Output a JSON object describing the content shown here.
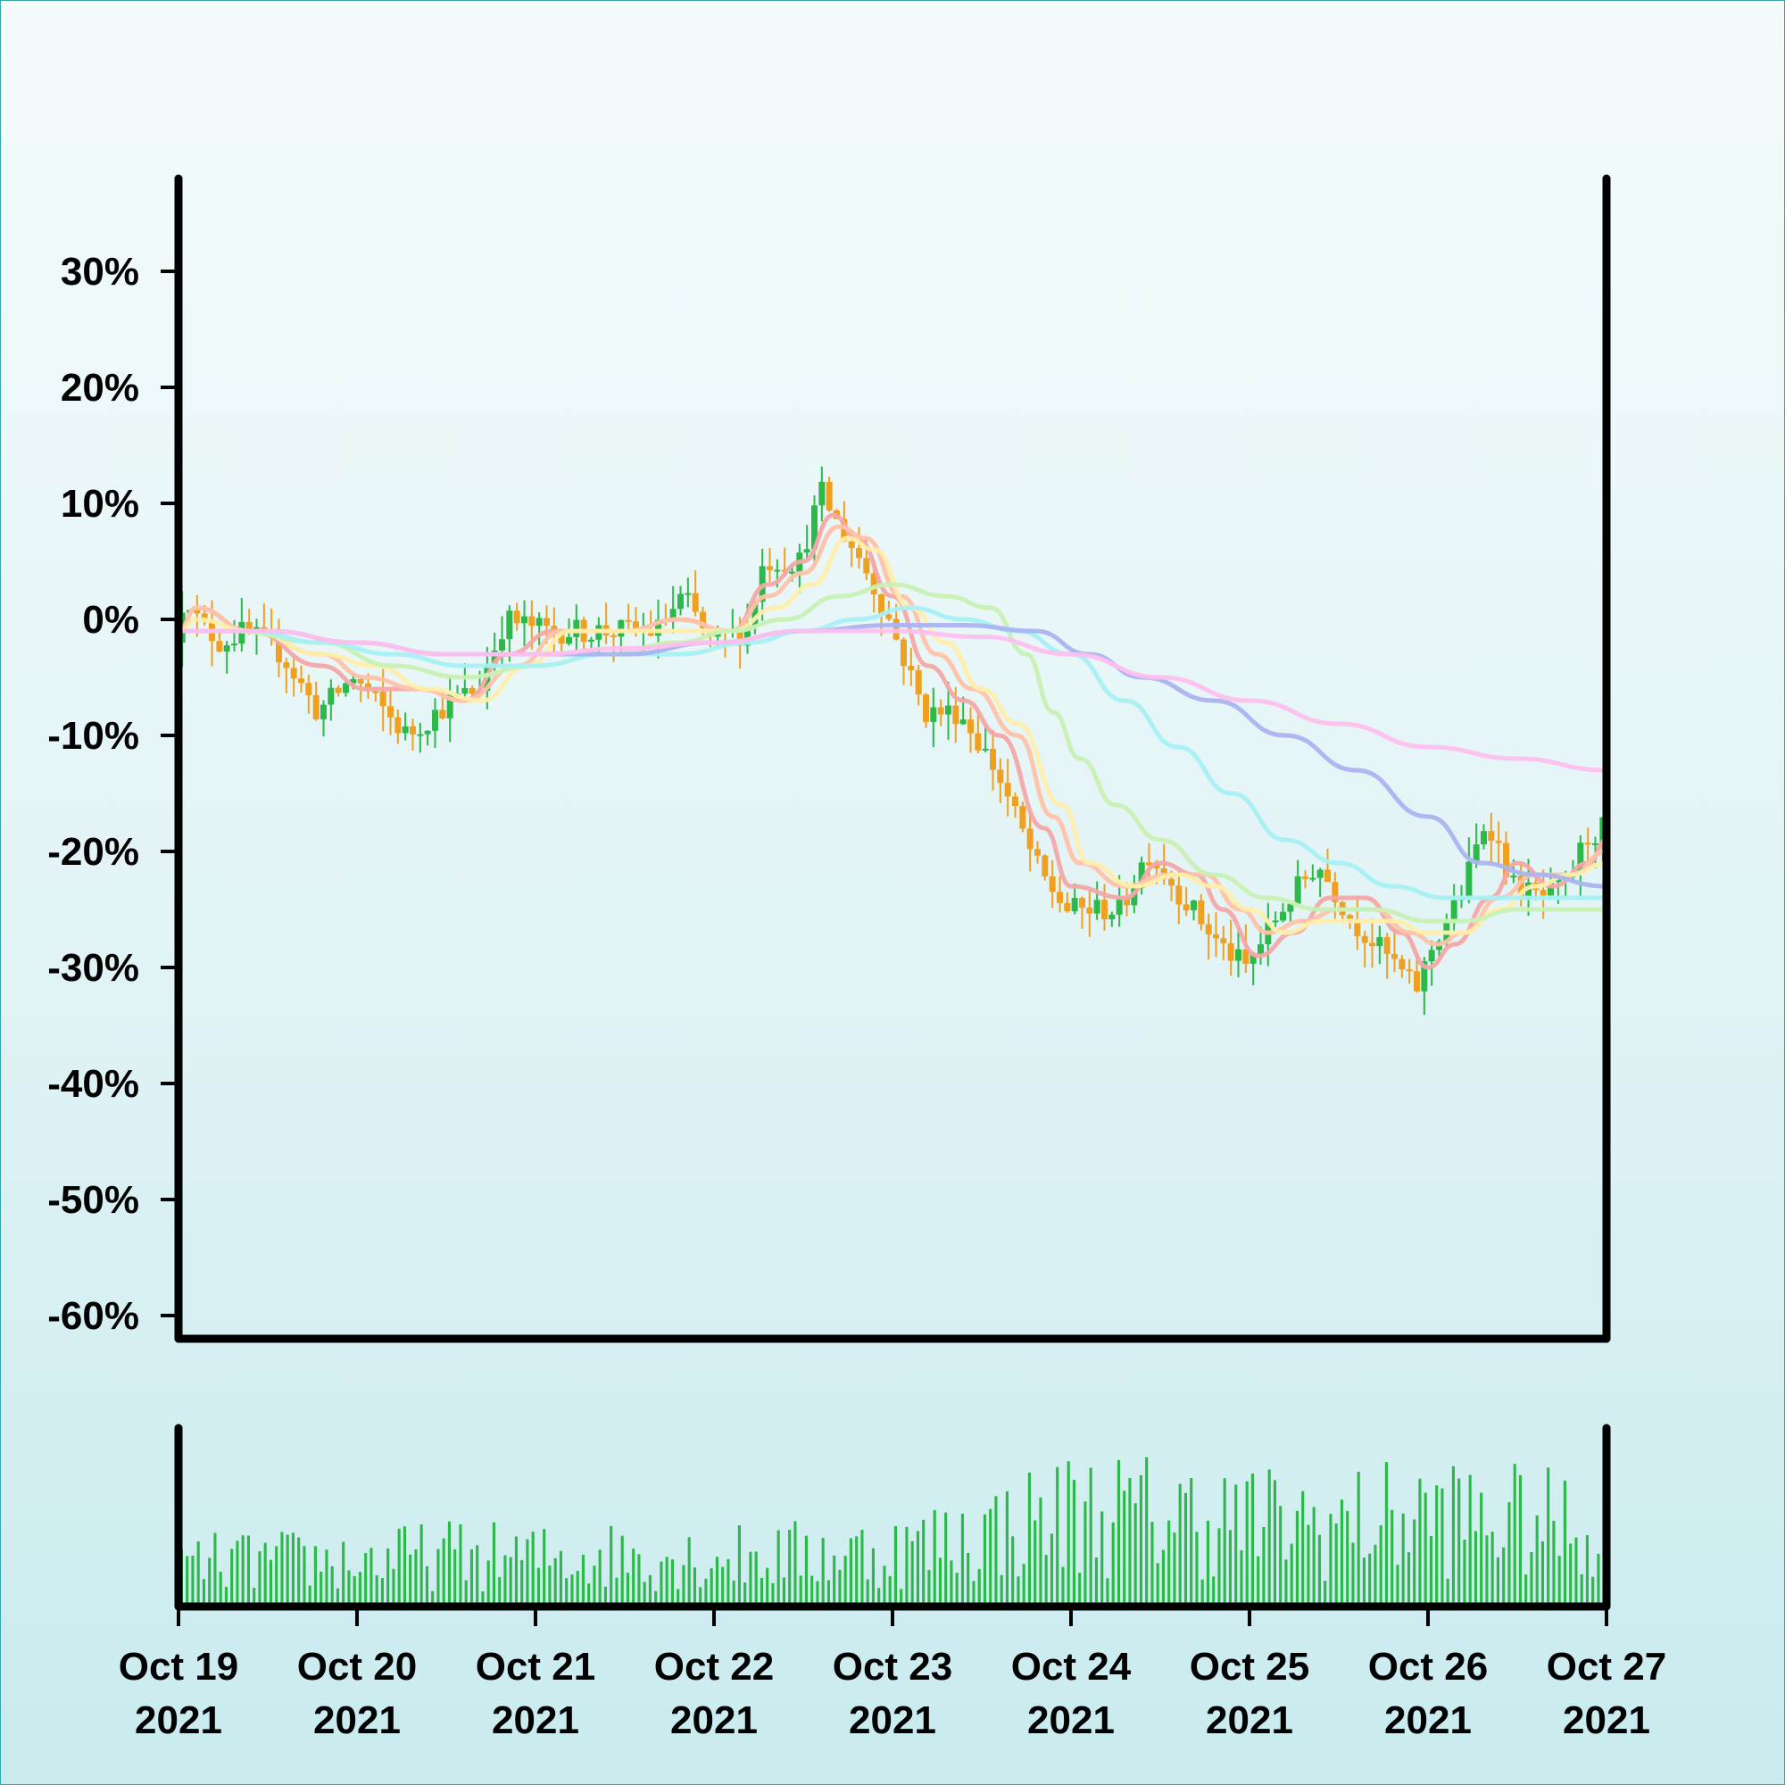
{
  "chart_data": {
    "type": "candlestick",
    "title": "",
    "xlabel": "",
    "ylabel": "",
    "y_unit": "%",
    "ylim": [
      -62,
      38
    ],
    "yticks": [
      {
        "value": 30,
        "label": "30%"
      },
      {
        "value": 20,
        "label": "20%"
      },
      {
        "value": 10,
        "label": "10%"
      },
      {
        "value": 0,
        "label": "0%"
      },
      {
        "value": -10,
        "label": "-10%"
      },
      {
        "value": -20,
        "label": "-20%"
      },
      {
        "value": -30,
        "label": "-30%"
      },
      {
        "value": -40,
        "label": "-40%"
      },
      {
        "value": -50,
        "label": "-50%"
      },
      {
        "value": -60,
        "label": "-60%"
      }
    ],
    "xlim": [
      "Oct 19 2021",
      "Oct 27 2021"
    ],
    "xticks": [
      {
        "value": 0,
        "line1": "Oct 19",
        "line2": "2021"
      },
      {
        "value": 1,
        "line1": "Oct 20",
        "line2": "2021"
      },
      {
        "value": 2,
        "line1": "Oct 21",
        "line2": "2021"
      },
      {
        "value": 3,
        "line1": "Oct 22",
        "line2": "2021"
      },
      {
        "value": 4,
        "line1": "Oct 23",
        "line2": "2021"
      },
      {
        "value": 5,
        "line1": "Oct 24",
        "line2": "2021"
      },
      {
        "value": 6,
        "line1": "Oct 25",
        "line2": "2021"
      },
      {
        "value": 7,
        "line1": "Oct 26",
        "line2": "2021"
      },
      {
        "value": 8,
        "line1": "Oct 27",
        "line2": "2021"
      }
    ],
    "price_path": [
      [
        0.0,
        -2
      ],
      [
        0.06,
        3
      ],
      [
        0.12,
        0
      ],
      [
        0.25,
        -2
      ],
      [
        0.4,
        -1
      ],
      [
        0.6,
        -3
      ],
      [
        0.8,
        -8
      ],
      [
        1.0,
        -5
      ],
      [
        1.3,
        -10
      ],
      [
        1.55,
        -7
      ],
      [
        1.7,
        -6
      ],
      [
        1.85,
        0
      ],
      [
        2.1,
        -1
      ],
      [
        2.5,
        -1
      ],
      [
        2.7,
        -1
      ],
      [
        2.85,
        2
      ],
      [
        3.0,
        -2
      ],
      [
        3.2,
        -1
      ],
      [
        3.3,
        5
      ],
      [
        3.5,
        5
      ],
      [
        3.62,
        11
      ],
      [
        3.72,
        8
      ],
      [
        3.85,
        5
      ],
      [
        4.0,
        0
      ],
      [
        4.2,
        -8
      ],
      [
        4.4,
        -8
      ],
      [
        4.6,
        -13
      ],
      [
        4.85,
        -22
      ],
      [
        5.0,
        -25
      ],
      [
        5.3,
        -25
      ],
      [
        5.45,
        -20
      ],
      [
        5.65,
        -24
      ],
      [
        5.85,
        -28
      ],
      [
        6.0,
        -30
      ],
      [
        6.2,
        -25
      ],
      [
        6.4,
        -21
      ],
      [
        6.6,
        -26
      ],
      [
        6.85,
        -30
      ],
      [
        6.95,
        -32
      ],
      [
        7.05,
        -28
      ],
      [
        7.2,
        -24
      ],
      [
        7.35,
        -17
      ],
      [
        7.5,
        -23
      ],
      [
        7.65,
        -24
      ],
      [
        7.8,
        -23
      ],
      [
        7.9,
        -19
      ],
      [
        8.0,
        -18
      ]
    ],
    "candles_per_day": 24,
    "series": [
      {
        "name": "",
        "color": "#f4a6a6",
        "points": [
          [
            0,
            -1
          ],
          [
            0.1,
            1
          ],
          [
            0.4,
            -1
          ],
          [
            0.8,
            -4
          ],
          [
            1.05,
            -6
          ],
          [
            1.35,
            -6
          ],
          [
            1.6,
            -7
          ],
          [
            1.85,
            -3
          ],
          [
            2.1,
            -1
          ],
          [
            2.5,
            -1
          ],
          [
            2.8,
            0
          ],
          [
            3.1,
            -1
          ],
          [
            3.3,
            3
          ],
          [
            3.5,
            5
          ],
          [
            3.67,
            9
          ],
          [
            3.8,
            7
          ],
          [
            4.0,
            2
          ],
          [
            4.2,
            -4
          ],
          [
            4.4,
            -7
          ],
          [
            4.6,
            -10
          ],
          [
            4.85,
            -18
          ],
          [
            5.0,
            -23
          ],
          [
            5.3,
            -24
          ],
          [
            5.5,
            -21
          ],
          [
            5.7,
            -22
          ],
          [
            5.85,
            -25
          ],
          [
            6.05,
            -29
          ],
          [
            6.25,
            -27
          ],
          [
            6.45,
            -24
          ],
          [
            6.65,
            -24
          ],
          [
            6.85,
            -27
          ],
          [
            7.0,
            -30
          ],
          [
            7.15,
            -28
          ],
          [
            7.35,
            -24
          ],
          [
            7.5,
            -21
          ],
          [
            7.7,
            -23
          ],
          [
            7.9,
            -21
          ],
          [
            8.0,
            -19
          ]
        ]
      },
      {
        "name": "",
        "color": "#ffc2a8",
        "points": [
          [
            0,
            -1
          ],
          [
            0.1,
            1
          ],
          [
            0.4,
            -1
          ],
          [
            0.8,
            -3
          ],
          [
            1.05,
            -5
          ],
          [
            1.35,
            -6
          ],
          [
            1.6,
            -7
          ],
          [
            1.9,
            -4
          ],
          [
            2.15,
            -1
          ],
          [
            2.5,
            -1
          ],
          [
            2.8,
            0
          ],
          [
            3.1,
            -1
          ],
          [
            3.3,
            2
          ],
          [
            3.5,
            4
          ],
          [
            3.7,
            8
          ],
          [
            3.85,
            7
          ],
          [
            4.05,
            2
          ],
          [
            4.25,
            -3
          ],
          [
            4.45,
            -6
          ],
          [
            4.7,
            -10
          ],
          [
            4.9,
            -17
          ],
          [
            5.05,
            -21
          ],
          [
            5.3,
            -23
          ],
          [
            5.55,
            -22
          ],
          [
            5.75,
            -22
          ],
          [
            5.95,
            -25
          ],
          [
            6.1,
            -27
          ],
          [
            6.3,
            -26
          ],
          [
            6.5,
            -25
          ],
          [
            6.7,
            -25
          ],
          [
            6.9,
            -27
          ],
          [
            7.05,
            -28
          ],
          [
            7.2,
            -27
          ],
          [
            7.4,
            -24
          ],
          [
            7.6,
            -22
          ],
          [
            7.8,
            -22
          ],
          [
            8.0,
            -20
          ]
        ]
      },
      {
        "name": "",
        "color": "#ffeeaa",
        "points": [
          [
            0,
            -1
          ],
          [
            0.1,
            0
          ],
          [
            0.4,
            -1
          ],
          [
            0.8,
            -3
          ],
          [
            1.1,
            -4
          ],
          [
            1.4,
            -6
          ],
          [
            1.7,
            -7
          ],
          [
            1.95,
            -4
          ],
          [
            2.2,
            -1
          ],
          [
            2.5,
            -1
          ],
          [
            2.8,
            -1
          ],
          [
            3.1,
            -1
          ],
          [
            3.35,
            1
          ],
          [
            3.55,
            3
          ],
          [
            3.75,
            7
          ],
          [
            3.9,
            6
          ],
          [
            4.1,
            1
          ],
          [
            4.3,
            -2
          ],
          [
            4.5,
            -6
          ],
          [
            4.7,
            -9
          ],
          [
            4.95,
            -16
          ],
          [
            5.1,
            -21
          ],
          [
            5.35,
            -23
          ],
          [
            5.6,
            -22
          ],
          [
            5.8,
            -23
          ],
          [
            6.0,
            -25
          ],
          [
            6.2,
            -27
          ],
          [
            6.4,
            -26
          ],
          [
            6.6,
            -26
          ],
          [
            6.8,
            -26
          ],
          [
            7.0,
            -27
          ],
          [
            7.2,
            -27
          ],
          [
            7.4,
            -25
          ],
          [
            7.6,
            -23
          ],
          [
            7.8,
            -22
          ],
          [
            8.0,
            -21
          ]
        ]
      },
      {
        "name": "",
        "color": "#c8f0b4",
        "points": [
          [
            0,
            -1
          ],
          [
            0.3,
            -1
          ],
          [
            0.8,
            -2
          ],
          [
            1.2,
            -4
          ],
          [
            1.6,
            -5
          ],
          [
            2.0,
            -4
          ],
          [
            2.4,
            -3
          ],
          [
            2.8,
            -2
          ],
          [
            3.1,
            -1
          ],
          [
            3.4,
            0
          ],
          [
            3.7,
            2
          ],
          [
            4.0,
            3
          ],
          [
            4.3,
            2
          ],
          [
            4.55,
            1
          ],
          [
            4.75,
            -3
          ],
          [
            4.9,
            -8
          ],
          [
            5.05,
            -12
          ],
          [
            5.25,
            -16
          ],
          [
            5.5,
            -19
          ],
          [
            5.8,
            -22
          ],
          [
            6.1,
            -24
          ],
          [
            6.4,
            -25
          ],
          [
            6.7,
            -25
          ],
          [
            7.0,
            -26
          ],
          [
            7.2,
            -26
          ],
          [
            7.5,
            -25
          ],
          [
            7.8,
            -25
          ],
          [
            8.0,
            -25
          ]
        ]
      },
      {
        "name": "",
        "color": "#a6f0f5",
        "points": [
          [
            0,
            -1
          ],
          [
            0.4,
            -1
          ],
          [
            0.8,
            -2
          ],
          [
            1.2,
            -3
          ],
          [
            1.6,
            -4
          ],
          [
            2.0,
            -4
          ],
          [
            2.4,
            -3
          ],
          [
            2.8,
            -3
          ],
          [
            3.2,
            -2
          ],
          [
            3.5,
            -1
          ],
          [
            3.8,
            0
          ],
          [
            4.1,
            1
          ],
          [
            4.4,
            0
          ],
          [
            4.7,
            -1
          ],
          [
            5.0,
            -3
          ],
          [
            5.3,
            -7
          ],
          [
            5.6,
            -11
          ],
          [
            5.9,
            -15
          ],
          [
            6.2,
            -19
          ],
          [
            6.5,
            -21
          ],
          [
            6.8,
            -23
          ],
          [
            7.1,
            -24
          ],
          [
            7.4,
            -24
          ],
          [
            7.7,
            -24
          ],
          [
            8.0,
            -24
          ]
        ]
      },
      {
        "name": "",
        "color": "#aab4f0",
        "points": [
          [
            0,
            -1
          ],
          [
            0.5,
            -1
          ],
          [
            1.0,
            -2
          ],
          [
            1.5,
            -3
          ],
          [
            2.0,
            -3
          ],
          [
            2.5,
            -3
          ],
          [
            3.0,
            -2
          ],
          [
            3.5,
            -1
          ],
          [
            4.0,
            -0.5
          ],
          [
            4.4,
            -0.5
          ],
          [
            4.8,
            -1
          ],
          [
            5.1,
            -3
          ],
          [
            5.4,
            -5
          ],
          [
            5.8,
            -7
          ],
          [
            6.2,
            -10
          ],
          [
            6.6,
            -13
          ],
          [
            7.0,
            -17
          ],
          [
            7.3,
            -21
          ],
          [
            7.6,
            -22
          ],
          [
            8.0,
            -23
          ]
        ]
      },
      {
        "name": "",
        "color": "#ffbfee",
        "points": [
          [
            0,
            -1
          ],
          [
            0.5,
            -1
          ],
          [
            1.0,
            -2
          ],
          [
            1.5,
            -3
          ],
          [
            2.0,
            -3
          ],
          [
            2.5,
            -2.5
          ],
          [
            3.0,
            -2
          ],
          [
            3.5,
            -1
          ],
          [
            4.0,
            -1
          ],
          [
            4.5,
            -1.5
          ],
          [
            5.0,
            -3
          ],
          [
            5.5,
            -5
          ],
          [
            6.0,
            -7
          ],
          [
            6.5,
            -9
          ],
          [
            7.0,
            -11
          ],
          [
            7.5,
            -12
          ],
          [
            8.0,
            -13
          ]
        ]
      }
    ],
    "volume": {
      "color": "#2db84a",
      "bars_per_day": 32,
      "activity": [
        [
          0.0,
          0.28
        ],
        [
          0.5,
          0.3
        ],
        [
          1.0,
          0.3
        ],
        [
          1.5,
          0.34
        ],
        [
          2.0,
          0.32
        ],
        [
          2.5,
          0.34
        ],
        [
          3.0,
          0.32
        ],
        [
          3.5,
          0.34
        ],
        [
          4.0,
          0.36
        ],
        [
          4.5,
          0.48
        ],
        [
          5.0,
          0.62
        ],
        [
          5.5,
          0.6
        ],
        [
          6.0,
          0.56
        ],
        [
          6.5,
          0.54
        ],
        [
          7.0,
          0.6
        ],
        [
          7.5,
          0.56
        ],
        [
          8.0,
          0.5
        ]
      ]
    },
    "colors": {
      "up": "#2db84a",
      "down": "#f0a020",
      "axis": "#000000"
    },
    "grid": false,
    "legend": "none"
  }
}
